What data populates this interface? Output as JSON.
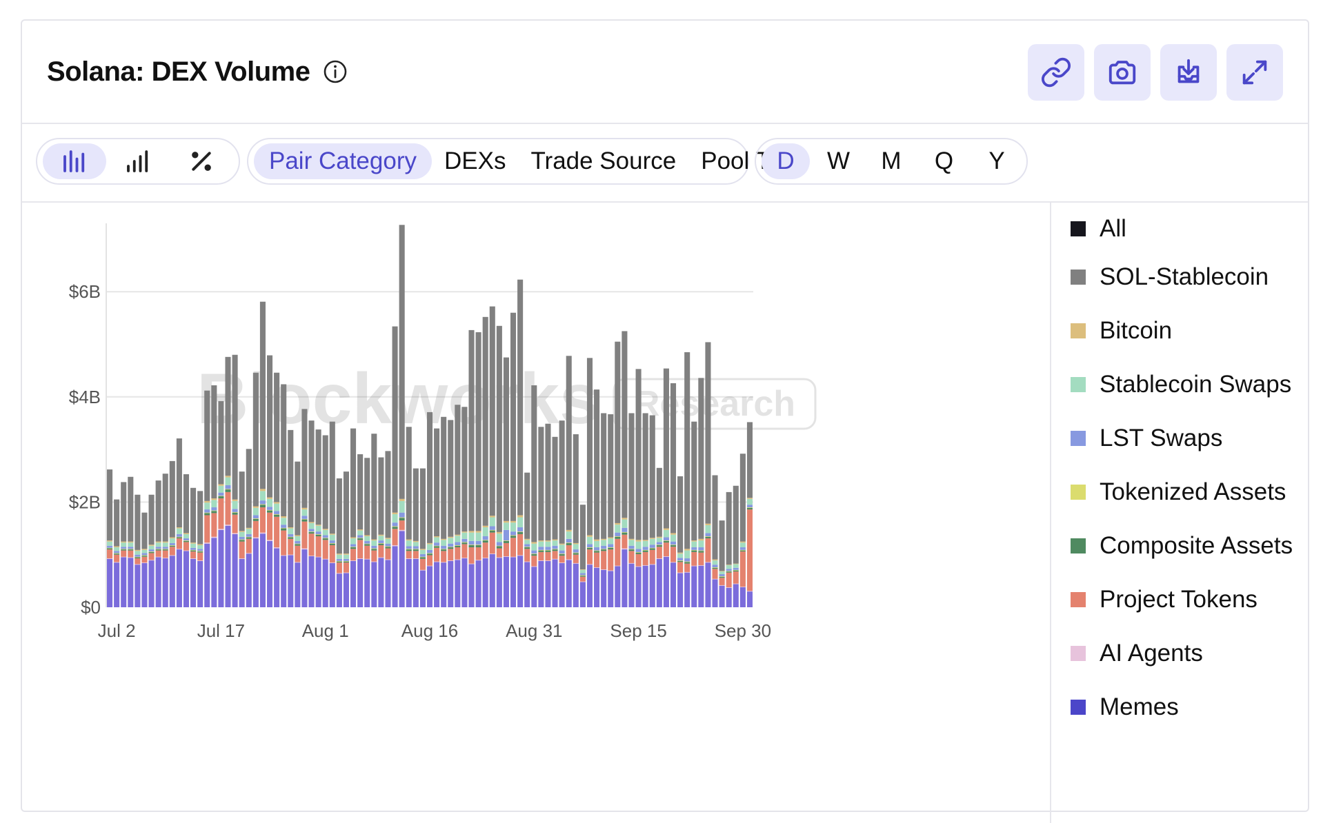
{
  "header": {
    "title": "Solana: DEX Volume",
    "actions": [
      {
        "name": "copy-link-button",
        "icon": "link-icon"
      },
      {
        "name": "screenshot-button",
        "icon": "camera-icon"
      },
      {
        "name": "download-button",
        "icon": "download-icon"
      },
      {
        "name": "fullscreen-button",
        "icon": "expand-icon"
      }
    ]
  },
  "toolbar": {
    "chart_types": [
      {
        "name": "stacked-bar-icon",
        "active": true
      },
      {
        "name": "bar-chart-icon",
        "active": false
      },
      {
        "name": "percent-icon",
        "active": false
      }
    ],
    "breakdowns": [
      {
        "label": "Pair Category",
        "active": true
      },
      {
        "label": "DEXs",
        "active": false
      },
      {
        "label": "Trade Source",
        "active": false
      },
      {
        "label": "Pool Type",
        "active": false
      }
    ],
    "intervals": [
      {
        "label": "D",
        "active": true
      },
      {
        "label": "W",
        "active": false
      },
      {
        "label": "M",
        "active": false
      },
      {
        "label": "Q",
        "active": false
      },
      {
        "label": "Y",
        "active": false
      }
    ]
  },
  "watermark": {
    "brand": "Blockworks",
    "tag": "Research"
  },
  "colors": {
    "accent": "#4a47c9",
    "accent_bg": "#e6e6fb",
    "grid": "#e6e6e6"
  },
  "legend": [
    {
      "label": "All",
      "color": "#16161d"
    },
    {
      "label": "SOL-Stablecoin",
      "color": "#808080"
    },
    {
      "label": "Bitcoin",
      "color": "#dcbe7d"
    },
    {
      "label": "Stablecoin Swaps",
      "color": "#a3dcc0"
    },
    {
      "label": "LST Swaps",
      "color": "#8799e0"
    },
    {
      "label": "Tokenized Assets",
      "color": "#dbdc6e"
    },
    {
      "label": "Composite Assets",
      "color": "#4f8a60"
    },
    {
      "label": "Project Tokens",
      "color": "#e4826e"
    },
    {
      "label": "AI Agents",
      "color": "#e7c3dc"
    },
    {
      "label": "Memes",
      "color": "#7b6cdb"
    }
  ],
  "chart_data": {
    "type": "bar",
    "stacked": true,
    "title": "Solana: DEX Volume",
    "xlabel": "",
    "ylabel": "",
    "y_unit": "billion USD",
    "ylim": [
      0,
      7.3
    ],
    "yticks": [
      0,
      2,
      4,
      6
    ],
    "ytick_labels": [
      "$0",
      "$2B",
      "$4B",
      "$6B"
    ],
    "xtick_labels": [
      "Jul 2",
      "Jul 17",
      "Aug 1",
      "Aug 16",
      "Aug 31",
      "Sep 15",
      "Sep 30"
    ],
    "grid": true,
    "legend_position": "right",
    "x_start": "2024-07-01",
    "x_end": "2024-09-30",
    "totals": [
      2.62,
      2.05,
      2.38,
      2.48,
      2.14,
      1.8,
      2.14,
      2.41,
      2.54,
      2.78,
      3.21,
      2.53,
      2.27,
      2.21,
      4.12,
      4.22,
      3.92,
      4.76,
      4.8,
      2.58,
      3.01,
      4.46,
      5.81,
      4.79,
      4.45,
      4.24,
      3.37,
      2.77,
      3.77,
      3.56,
      3.38,
      3.27,
      3.53,
      2.45,
      2.58,
      3.4,
      2.91,
      2.84,
      3.3,
      2.85,
      2.97,
      5.34,
      7.27,
      3.44,
      2.64,
      2.64,
      3.71,
      3.4,
      3.62,
      3.56,
      3.85,
      3.81,
      5.27,
      5.23,
      5.51,
      5.72,
      5.34,
      4.75,
      5.6,
      6.23,
      2.56,
      4.22,
      3.43,
      3.49,
      3.24,
      3.55,
      4.78,
      3.29,
      1.95,
      4.74,
      4.14,
      3.69,
      3.67,
      5.05,
      5.25,
      3.69,
      4.53,
      3.69,
      3.66,
      2.65,
      4.54,
      4.26,
      2.49,
      4.85,
      3.53,
      4.36,
      5.04,
      2.53,
      1.64,
      2.19,
      2.31,
      2.91,
      3.52
    ],
    "series": [
      {
        "name": "Memes",
        "values": [
          0.92,
          0.85,
          0.95,
          0.94,
          0.81,
          0.84,
          0.89,
          0.95,
          0.93,
          0.98,
          1.1,
          1.07,
          0.92,
          0.88,
          1.21,
          1.32,
          1.47,
          1.55,
          1.39,
          0.92,
          1.02,
          1.31,
          1.4,
          1.26,
          1.12,
          0.98,
          0.99,
          0.85,
          1.1,
          0.97,
          0.95,
          0.91,
          0.84,
          0.64,
          0.65,
          0.88,
          0.92,
          0.91,
          0.86,
          0.94,
          0.9,
          1.16,
          1.45,
          0.92,
          0.92,
          0.7,
          0.78,
          0.86,
          0.85,
          0.88,
          0.9,
          0.93,
          0.82,
          0.89,
          0.93,
          1.01,
          0.94,
          0.96,
          0.95,
          0.98,
          0.86,
          0.77,
          0.88,
          0.88,
          0.91,
          0.84,
          0.9,
          0.83,
          0.48,
          0.81,
          0.75,
          0.71,
          0.69,
          0.78,
          1.1,
          0.83,
          0.77,
          0.79,
          0.81,
          0.92,
          0.96,
          0.85,
          0.65,
          0.66,
          0.78,
          0.79,
          0.85,
          0.53,
          0.41,
          0.37,
          0.44,
          0.38,
          0.3
        ]
      },
      {
        "name": "AI Agents",
        "values": [
          0.01,
          0.01,
          0.01,
          0.01,
          0.01,
          0.01,
          0.01,
          0.01,
          0.01,
          0.01,
          0.01,
          0.01,
          0.01,
          0.01,
          0.02,
          0.02,
          0.02,
          0.02,
          0.02,
          0.01,
          0.01,
          0.02,
          0.02,
          0.02,
          0.02,
          0.01,
          0.01,
          0.01,
          0.02,
          0.01,
          0.01,
          0.01,
          0.01,
          0.01,
          0.01,
          0.01,
          0.01,
          0.01,
          0.01,
          0.01,
          0.01,
          0.02,
          0.02,
          0.01,
          0.01,
          0.01,
          0.01,
          0.01,
          0.01,
          0.01,
          0.01,
          0.01,
          0.01,
          0.01,
          0.01,
          0.01,
          0.01,
          0.01,
          0.01,
          0.01,
          0.01,
          0.01,
          0.01,
          0.01,
          0.01,
          0.01,
          0.01,
          0.01,
          0.01,
          0.01,
          0.01,
          0.01,
          0.01,
          0.01,
          0.02,
          0.01,
          0.01,
          0.01,
          0.01,
          0.01,
          0.01,
          0.01,
          0.01,
          0.01,
          0.01,
          0.01,
          0.01,
          0.01,
          0.01,
          0.01,
          0.01,
          0.01,
          0.01
        ]
      },
      {
        "name": "Project Tokens",
        "values": [
          0.17,
          0.14,
          0.12,
          0.13,
          0.11,
          0.11,
          0.13,
          0.12,
          0.14,
          0.16,
          0.2,
          0.16,
          0.13,
          0.15,
          0.52,
          0.45,
          0.58,
          0.62,
          0.35,
          0.32,
          0.27,
          0.31,
          0.48,
          0.52,
          0.58,
          0.47,
          0.3,
          0.31,
          0.51,
          0.42,
          0.39,
          0.36,
          0.33,
          0.2,
          0.19,
          0.22,
          0.35,
          0.25,
          0.21,
          0.23,
          0.21,
          0.31,
          0.18,
          0.14,
          0.14,
          0.21,
          0.2,
          0.26,
          0.21,
          0.22,
          0.23,
          0.26,
          0.31,
          0.24,
          0.29,
          0.4,
          0.17,
          0.25,
          0.36,
          0.4,
          0.24,
          0.2,
          0.16,
          0.16,
          0.15,
          0.13,
          0.27,
          0.16,
          0.09,
          0.28,
          0.28,
          0.35,
          0.4,
          0.51,
          0.26,
          0.23,
          0.23,
          0.25,
          0.27,
          0.22,
          0.26,
          0.29,
          0.2,
          0.16,
          0.26,
          0.24,
          0.45,
          0.19,
          0.14,
          0.28,
          0.23,
          0.67,
          1.55
        ]
      },
      {
        "name": "Composite Assets",
        "values": [
          0.02,
          0.02,
          0.02,
          0.02,
          0.02,
          0.02,
          0.02,
          0.02,
          0.02,
          0.02,
          0.02,
          0.02,
          0.02,
          0.02,
          0.04,
          0.04,
          0.04,
          0.05,
          0.04,
          0.03,
          0.03,
          0.04,
          0.05,
          0.04,
          0.04,
          0.04,
          0.03,
          0.03,
          0.04,
          0.03,
          0.03,
          0.03,
          0.03,
          0.02,
          0.02,
          0.03,
          0.03,
          0.03,
          0.03,
          0.03,
          0.03,
          0.04,
          0.05,
          0.03,
          0.03,
          0.03,
          0.03,
          0.03,
          0.03,
          0.03,
          0.03,
          0.03,
          0.04,
          0.04,
          0.04,
          0.04,
          0.04,
          0.04,
          0.04,
          0.04,
          0.03,
          0.03,
          0.03,
          0.03,
          0.03,
          0.03,
          0.04,
          0.03,
          0.02,
          0.03,
          0.03,
          0.03,
          0.03,
          0.04,
          0.04,
          0.03,
          0.03,
          0.03,
          0.03,
          0.03,
          0.03,
          0.03,
          0.02,
          0.03,
          0.03,
          0.03,
          0.03,
          0.02,
          0.02,
          0.02,
          0.02,
          0.02,
          0.03
        ]
      },
      {
        "name": "Tokenized Assets",
        "values": [
          0.01,
          0.01,
          0.01,
          0.01,
          0.01,
          0.01,
          0.01,
          0.01,
          0.01,
          0.01,
          0.01,
          0.01,
          0.01,
          0.01,
          0.01,
          0.01,
          0.01,
          0.01,
          0.01,
          0.01,
          0.01,
          0.01,
          0.01,
          0.01,
          0.01,
          0.01,
          0.01,
          0.01,
          0.01,
          0.01,
          0.01,
          0.01,
          0.01,
          0.01,
          0.01,
          0.01,
          0.01,
          0.01,
          0.01,
          0.01,
          0.01,
          0.01,
          0.01,
          0.01,
          0.01,
          0.01,
          0.01,
          0.01,
          0.01,
          0.01,
          0.01,
          0.01,
          0.01,
          0.01,
          0.01,
          0.01,
          0.01,
          0.01,
          0.01,
          0.01,
          0.01,
          0.01,
          0.01,
          0.01,
          0.01,
          0.01,
          0.01,
          0.01,
          0.01,
          0.01,
          0.01,
          0.01,
          0.01,
          0.01,
          0.01,
          0.01,
          0.01,
          0.01,
          0.01,
          0.01,
          0.01,
          0.01,
          0.01,
          0.01,
          0.01,
          0.01,
          0.01,
          0.01,
          0.01,
          0.01,
          0.01,
          0.01,
          0.01
        ]
      },
      {
        "name": "LST Swaps",
        "values": [
          0.04,
          0.04,
          0.04,
          0.04,
          0.04,
          0.04,
          0.04,
          0.04,
          0.04,
          0.04,
          0.05,
          0.04,
          0.04,
          0.04,
          0.06,
          0.06,
          0.06,
          0.07,
          0.06,
          0.05,
          0.05,
          0.06,
          0.07,
          0.06,
          0.06,
          0.06,
          0.05,
          0.05,
          0.06,
          0.05,
          0.05,
          0.05,
          0.05,
          0.04,
          0.04,
          0.05,
          0.05,
          0.05,
          0.05,
          0.05,
          0.05,
          0.07,
          0.09,
          0.05,
          0.05,
          0.05,
          0.06,
          0.06,
          0.06,
          0.06,
          0.06,
          0.06,
          0.07,
          0.07,
          0.07,
          0.07,
          0.07,
          0.2,
          0.07,
          0.08,
          0.05,
          0.06,
          0.06,
          0.06,
          0.06,
          0.06,
          0.07,
          0.06,
          0.04,
          0.06,
          0.06,
          0.06,
          0.06,
          0.07,
          0.08,
          0.06,
          0.06,
          0.06,
          0.06,
          0.05,
          0.06,
          0.06,
          0.05,
          0.06,
          0.05,
          0.06,
          0.06,
          0.05,
          0.04,
          0.04,
          0.04,
          0.05,
          0.05
        ]
      },
      {
        "name": "Stablecoin Swaps",
        "values": [
          0.08,
          0.07,
          0.08,
          0.08,
          0.07,
          0.06,
          0.07,
          0.08,
          0.08,
          0.09,
          0.11,
          0.08,
          0.08,
          0.07,
          0.13,
          0.14,
          0.13,
          0.15,
          0.15,
          0.09,
          0.1,
          0.14,
          0.18,
          0.15,
          0.14,
          0.13,
          0.11,
          0.09,
          0.12,
          0.11,
          0.11,
          0.1,
          0.11,
          0.08,
          0.08,
          0.11,
          0.09,
          0.09,
          0.1,
          0.09,
          0.09,
          0.16,
          0.22,
          0.11,
          0.08,
          0.08,
          0.11,
          0.1,
          0.11,
          0.11,
          0.12,
          0.12,
          0.16,
          0.16,
          0.17,
          0.17,
          0.16,
          0.14,
          0.17,
          0.19,
          0.08,
          0.13,
          0.1,
          0.1,
          0.1,
          0.11,
          0.14,
          0.1,
          0.06,
          0.14,
          0.12,
          0.11,
          0.11,
          0.15,
          0.16,
          0.11,
          0.14,
          0.11,
          0.11,
          0.08,
          0.14,
          0.13,
          0.08,
          0.15,
          0.11,
          0.13,
          0.15,
          0.08,
          0.05,
          0.07,
          0.07,
          0.09,
          0.11
        ]
      },
      {
        "name": "Bitcoin",
        "values": [
          0.02,
          0.02,
          0.02,
          0.02,
          0.02,
          0.02,
          0.02,
          0.02,
          0.02,
          0.02,
          0.02,
          0.02,
          0.02,
          0.02,
          0.03,
          0.03,
          0.03,
          0.03,
          0.03,
          0.02,
          0.02,
          0.03,
          0.04,
          0.03,
          0.03,
          0.03,
          0.02,
          0.02,
          0.03,
          0.02,
          0.02,
          0.02,
          0.02,
          0.02,
          0.02,
          0.02,
          0.02,
          0.02,
          0.02,
          0.02,
          0.02,
          0.03,
          0.04,
          0.02,
          0.02,
          0.02,
          0.02,
          0.02,
          0.02,
          0.02,
          0.02,
          0.02,
          0.03,
          0.03,
          0.03,
          0.03,
          0.03,
          0.03,
          0.03,
          0.04,
          0.02,
          0.03,
          0.02,
          0.02,
          0.02,
          0.02,
          0.03,
          0.02,
          0.01,
          0.03,
          0.03,
          0.02,
          0.02,
          0.03,
          0.03,
          0.02,
          0.03,
          0.02,
          0.02,
          0.02,
          0.03,
          0.03,
          0.02,
          0.03,
          0.02,
          0.03,
          0.03,
          0.02,
          0.01,
          0.01,
          0.01,
          0.02,
          0.02
        ]
      },
      {
        "name": "SOL-Stablecoin",
        "values": [
          1.35,
          0.89,
          1.13,
          1.23,
          1.05,
          0.69,
          0.95,
          1.16,
          1.29,
          1.45,
          1.69,
          1.12,
          1.04,
          1.01,
          2.1,
          2.15,
          1.58,
          2.26,
          2.75,
          1.13,
          1.5,
          2.54,
          3.56,
          2.7,
          2.46,
          2.51,
          1.85,
          1.4,
          1.88,
          1.93,
          1.81,
          1.78,
          2.13,
          1.43,
          1.56,
          2.07,
          1.43,
          1.47,
          2.01,
          1.47,
          1.65,
          3.54,
          5.21,
          2.14,
          1.38,
          1.53,
          2.49,
          2.05,
          2.32,
          2.22,
          2.47,
          2.37,
          3.82,
          3.78,
          3.97,
          3.98,
          3.92,
          3.11,
          3.96,
          4.48,
          1.26,
          2.98,
          2.16,
          2.22,
          1.95,
          2.34,
          3.31,
          2.07,
          1.23,
          3.37,
          2.85,
          2.39,
          2.34,
          3.45,
          3.55,
          2.39,
          3.25,
          2.41,
          2.33,
          1.31,
          3.04,
          2.85,
          1.45,
          3.74,
          2.26,
          3.06,
          3.45,
          1.6,
          0.96,
          1.38,
          1.48,
          1.67,
          1.44
        ]
      }
    ]
  }
}
